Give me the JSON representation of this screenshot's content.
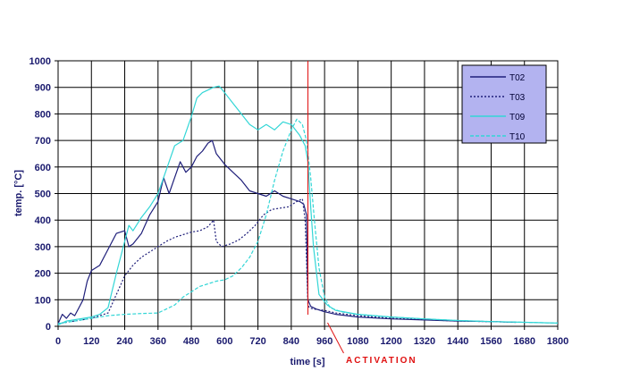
{
  "chart_data": {
    "type": "line",
    "xlabel": "time [s]",
    "ylabel": "temp. [°C]",
    "xlim": [
      0,
      1800
    ],
    "ylim": [
      0,
      1000
    ],
    "x_ticks": [
      0,
      120,
      240,
      360,
      480,
      600,
      720,
      840,
      960,
      1080,
      1200,
      1320,
      1440,
      1560,
      1680,
      1800
    ],
    "y_ticks": [
      0,
      100,
      200,
      300,
      400,
      500,
      600,
      700,
      800,
      900,
      1000
    ],
    "grid": true,
    "legend_position": "top-right",
    "series": [
      {
        "name": "T02",
        "color": "#1f1f7a",
        "dash": "solid",
        "x": [
          0,
          15,
          30,
          45,
          60,
          90,
          105,
          120,
          150,
          180,
          210,
          240,
          255,
          270,
          300,
          330,
          360,
          380,
          400,
          420,
          440,
          460,
          480,
          500,
          520,
          540,
          555,
          570,
          600,
          630,
          660,
          690,
          720,
          750,
          780,
          810,
          840,
          870,
          885,
          895,
          900,
          910,
          930,
          960,
          1000,
          1080,
          1200,
          1320,
          1440,
          1560,
          1650
        ],
        "y": [
          10,
          45,
          30,
          50,
          40,
          100,
          170,
          210,
          230,
          290,
          350,
          360,
          300,
          310,
          350,
          420,
          470,
          560,
          500,
          560,
          620,
          580,
          600,
          640,
          660,
          690,
          700,
          650,
          610,
          580,
          550,
          510,
          500,
          490,
          510,
          490,
          480,
          470,
          460,
          420,
          100,
          75,
          65,
          55,
          45,
          35,
          28,
          24,
          20,
          18,
          15
        ]
      },
      {
        "name": "T03",
        "color": "#1f1f7a",
        "dash": "dotted",
        "x": [
          0,
          60,
          120,
          180,
          210,
          240,
          270,
          300,
          330,
          360,
          390,
          420,
          450,
          480,
          510,
          540,
          560,
          570,
          590,
          620,
          650,
          680,
          710,
          740,
          770,
          800,
          830,
          860,
          880,
          890,
          895,
          900,
          905,
          920,
          960,
          1000,
          1080,
          1200,
          1320,
          1440,
          1560,
          1650
        ],
        "y": [
          10,
          20,
          30,
          50,
          120,
          190,
          230,
          260,
          280,
          300,
          320,
          335,
          345,
          355,
          360,
          375,
          400,
          320,
          300,
          310,
          325,
          350,
          380,
          420,
          440,
          445,
          450,
          470,
          480,
          400,
          250,
          80,
          70,
          65,
          60,
          50,
          40,
          30,
          25,
          20,
          18,
          15
        ]
      },
      {
        "name": "T09",
        "color": "#33d6d6",
        "dash": "solid",
        "x": [
          0,
          30,
          60,
          90,
          120,
          150,
          180,
          210,
          240,
          255,
          270,
          300,
          330,
          360,
          380,
          400,
          420,
          450,
          480,
          500,
          520,
          540,
          560,
          580,
          600,
          630,
          660,
          690,
          720,
          750,
          780,
          810,
          840,
          870,
          890,
          900,
          910,
          920,
          940,
          970,
          1000,
          1080,
          1200,
          1320,
          1440,
          1560,
          1680,
          1800
        ],
        "y": [
          5,
          20,
          25,
          30,
          35,
          45,
          70,
          200,
          320,
          380,
          360,
          410,
          450,
          500,
          560,
          620,
          680,
          700,
          790,
          860,
          880,
          890,
          900,
          905,
          880,
          840,
          800,
          760,
          740,
          760,
          740,
          770,
          760,
          720,
          680,
          620,
          450,
          300,
          120,
          80,
          60,
          45,
          35,
          28,
          22,
          18,
          15,
          12
        ]
      },
      {
        "name": "T10",
        "color": "#33d6d6",
        "dash": "dashed",
        "x": [
          0,
          60,
          120,
          180,
          240,
          300,
          360,
          420,
          450,
          480,
          510,
          540,
          570,
          600,
          630,
          660,
          690,
          720,
          750,
          780,
          810,
          840,
          860,
          880,
          895,
          910,
          925,
          940,
          960,
          980,
          1020,
          1080,
          1200,
          1320,
          1440,
          1560,
          1680,
          1800
        ],
        "y": [
          10,
          20,
          30,
          40,
          45,
          48,
          50,
          80,
          110,
          130,
          150,
          160,
          170,
          175,
          190,
          220,
          260,
          320,
          420,
          550,
          660,
          740,
          780,
          760,
          700,
          560,
          380,
          220,
          110,
          70,
          55,
          45,
          35,
          28,
          22,
          18,
          15,
          12
        ]
      }
    ],
    "annotations": [
      {
        "type": "vline",
        "x": 900,
        "color": "#e01010"
      },
      {
        "type": "text",
        "text": "ACTIVATION",
        "color": "#e01010"
      }
    ]
  }
}
